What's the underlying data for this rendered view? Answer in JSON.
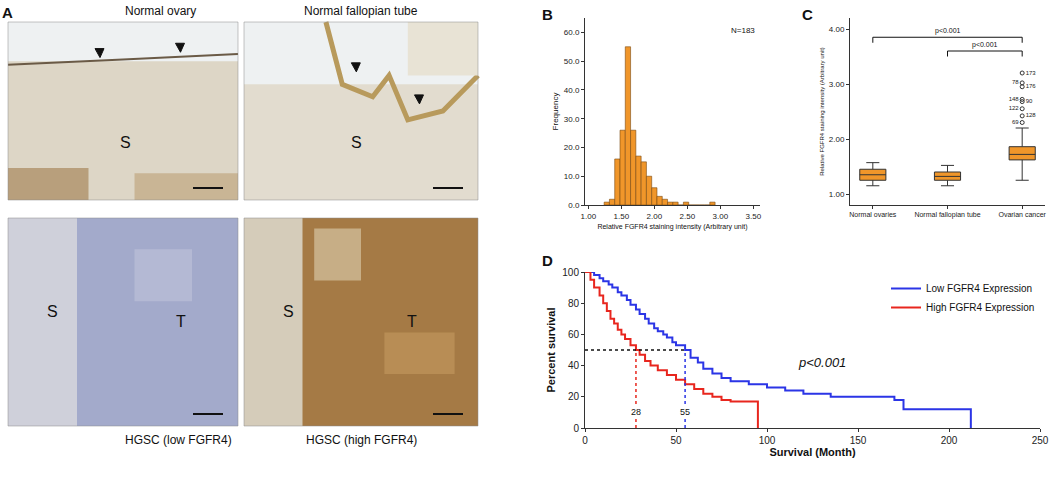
{
  "chart_data": [
    {
      "type": "micrograph_grid",
      "title": "A",
      "images": [
        {
          "caption": "Normal ovary",
          "labels": [
            "S"
          ]
        },
        {
          "caption": "Normal fallopian tube",
          "labels": [
            "S"
          ]
        },
        {
          "caption": "HGSC (low FGFR4)",
          "labels": [
            "S",
            "T"
          ]
        },
        {
          "caption": "HGSC (high FGFR4)",
          "labels": [
            "S",
            "T"
          ]
        }
      ]
    },
    {
      "type": "histogram",
      "title": "B",
      "x_label": "Relative FGFR4 staining intensity (Arbitrary unit)",
      "y_label": "Frequency",
      "bins": [
        1.24,
        1.32,
        1.4,
        1.48,
        1.56,
        1.64,
        1.72,
        1.8,
        1.88,
        1.96,
        2.04,
        2.12,
        2.2,
        2.28,
        2.36,
        2.44,
        2.52,
        2.6,
        2.68,
        2.76,
        2.84,
        2.92
      ],
      "counts": [
        1,
        2,
        16,
        26,
        55,
        26,
        17,
        15,
        10,
        6,
        3,
        2,
        1,
        1,
        0,
        1,
        0,
        0,
        0,
        0,
        1
      ],
      "color": "#f0962a",
      "xlim": [
        0.95,
        3.6
      ],
      "xticks": [
        {
          "value": 1,
          "label": "1.00"
        },
        {
          "value": 1.5,
          "label": "1.50"
        },
        {
          "value": 2,
          "label": "2.00"
        },
        {
          "value": 2.5,
          "label": "2.50"
        },
        {
          "value": 3,
          "label": "3.00"
        },
        {
          "value": 3.5,
          "label": "3.50"
        }
      ],
      "ylim": [
        0,
        65
      ],
      "yticks": [
        {
          "value": 0,
          "label": "0.0"
        },
        {
          "value": 10,
          "label": "10.0"
        },
        {
          "value": 20,
          "label": "20.0"
        },
        {
          "value": 30,
          "label": "30.0"
        },
        {
          "value": 40,
          "label": "40.0"
        },
        {
          "value": 50,
          "label": "50.0"
        },
        {
          "value": 60,
          "label": "60.0"
        }
      ],
      "grid": false,
      "annotations": [
        {
          "text": "N=183"
        }
      ]
    },
    {
      "type": "box",
      "title": "C",
      "y_label": "Relative FGFR4 staining intensity (Arbitrary unit)",
      "categories": [
        "Normal ovaries",
        "Normal fallopian tube",
        "Ovarian cancer"
      ],
      "boxes": [
        {
          "min": 1.15,
          "q1": 1.25,
          "median": 1.35,
          "q3": 1.45,
          "max": 1.57
        },
        {
          "min": 1.15,
          "q1": 1.25,
          "median": 1.32,
          "q3": 1.4,
          "max": 1.52
        },
        {
          "min": 1.25,
          "q1": 1.62,
          "median": 1.72,
          "q3": 1.86,
          "max": 2.2
        }
      ],
      "outliers": [
        {
          "category": "Ovarian cancer",
          "value": 3.2,
          "label": "173"
        },
        {
          "category": "Ovarian cancer",
          "value": 3.02,
          "label": "78"
        },
        {
          "category": "Ovarian cancer",
          "value": 2.95,
          "label": "176"
        },
        {
          "category": "Ovarian cancer",
          "value": 2.72,
          "label": "148"
        },
        {
          "category": "Ovarian cancer",
          "value": 2.68,
          "label": "90"
        },
        {
          "category": "Ovarian cancer",
          "value": 2.55,
          "label": "122"
        },
        {
          "category": "Ovarian cancer",
          "value": 2.42,
          "label": "128"
        },
        {
          "category": "Ovarian cancer",
          "value": 2.3,
          "label": "69"
        }
      ],
      "color": "#f0962a",
      "ylim": [
        0.8,
        4.2
      ],
      "yticks": [
        {
          "value": 1,
          "label": "1.00"
        },
        {
          "value": 2,
          "label": "2.00"
        },
        {
          "value": 3,
          "label": "3.00"
        },
        {
          "value": 4,
          "label": "4.00"
        }
      ],
      "grid": false,
      "annotations": [
        {
          "text": "p<0.001",
          "between": [
            "Normal ovaries",
            "Ovarian cancer"
          ],
          "y": 3.85
        },
        {
          "text": "p<0.001",
          "between": [
            "Normal fallopian tube",
            "Ovarian cancer"
          ],
          "y": 3.6
        }
      ]
    },
    {
      "type": "line",
      "title": "D",
      "x_label": "Survival (Month)",
      "y_label": "Percent survival",
      "series": [
        {
          "name": "Low FGFR4 Expression",
          "color": "#2b35e6",
          "line_style": "step",
          "median": 55,
          "x": [
            0,
            5,
            8,
            10,
            13,
            15,
            18,
            20,
            23,
            25,
            28,
            30,
            33,
            35,
            38,
            40,
            43,
            45,
            48,
            50,
            55,
            58,
            62,
            65,
            70,
            75,
            80,
            90,
            100,
            110,
            120,
            135,
            150,
            170,
            175,
            190,
            200,
            212
          ],
          "values": [
            100,
            98,
            96,
            94,
            92,
            90,
            87,
            85,
            82,
            79,
            76,
            73,
            70,
            67,
            64,
            62,
            60,
            58,
            55,
            53,
            50,
            45,
            42,
            38,
            35,
            32,
            30,
            28,
            26,
            24,
            22,
            20,
            20,
            18,
            12,
            12,
            12,
            0
          ]
        },
        {
          "name": "High FGFR4 Expression",
          "color": "#e8261e",
          "line_style": "step",
          "median": 28,
          "x": [
            0,
            3,
            5,
            8,
            10,
            12,
            14,
            16,
            18,
            20,
            22,
            25,
            28,
            30,
            33,
            36,
            40,
            45,
            50,
            55,
            60,
            65,
            70,
            75,
            80,
            95
          ],
          "values": [
            100,
            95,
            90,
            85,
            80,
            75,
            70,
            67,
            63,
            60,
            57,
            53,
            50,
            47,
            43,
            40,
            37,
            34,
            31,
            28,
            25,
            22,
            20,
            18,
            17,
            0
          ]
        }
      ],
      "median_y": 50,
      "xlim": [
        0,
        250
      ],
      "xticks": [
        0,
        50,
        100,
        150,
        200,
        250
      ],
      "ylim": [
        0,
        100
      ],
      "yticks": [
        0,
        20,
        40,
        60,
        80,
        100
      ],
      "grid": false,
      "legend": "top right",
      "annotations": [
        {
          "text": "p<0.001"
        }
      ]
    }
  ]
}
